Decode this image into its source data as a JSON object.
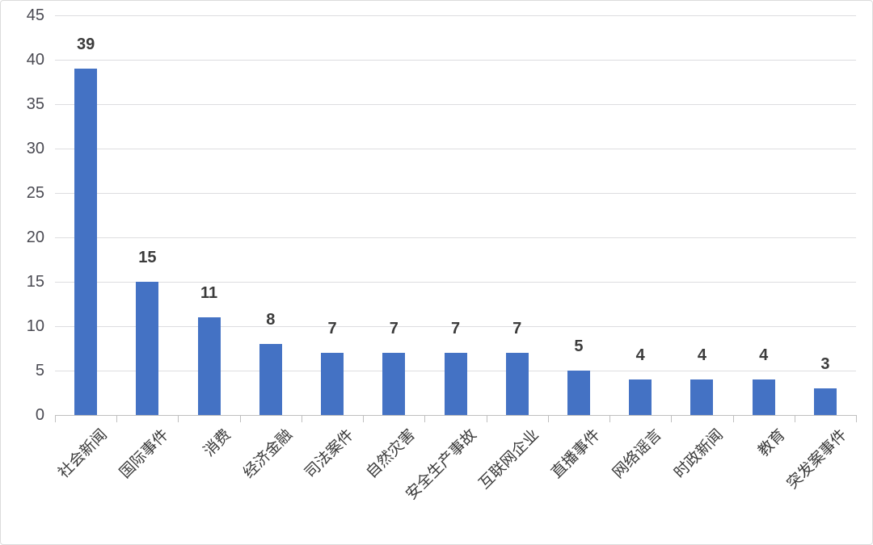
{
  "chart_data": {
    "type": "bar",
    "title": "",
    "xlabel": "",
    "ylabel": "",
    "categories": [
      "社会新闻",
      "国际事件",
      "消费",
      "经济金融",
      "司法案件",
      "自然灾害",
      "安全生产事故",
      "互联网企业",
      "直播事件",
      "网络谣言",
      "时政新闻",
      "教育",
      "突发案事件"
    ],
    "values": [
      39,
      15,
      11,
      8,
      7,
      7,
      7,
      7,
      5,
      4,
      4,
      4,
      3
    ],
    "ylim": [
      0,
      45
    ],
    "yticks": [
      0,
      5,
      10,
      15,
      20,
      25,
      30,
      35,
      40,
      45
    ],
    "grid": true,
    "legend": "none",
    "data_labels": true,
    "colors": {
      "bar": "#4472C4",
      "gridline": "#dddde0",
      "axis_line": "#bfbfbf",
      "y_label": "#4a4a52",
      "value_label": "#3b3b3b",
      "x_label": "#3a3a3a"
    }
  }
}
